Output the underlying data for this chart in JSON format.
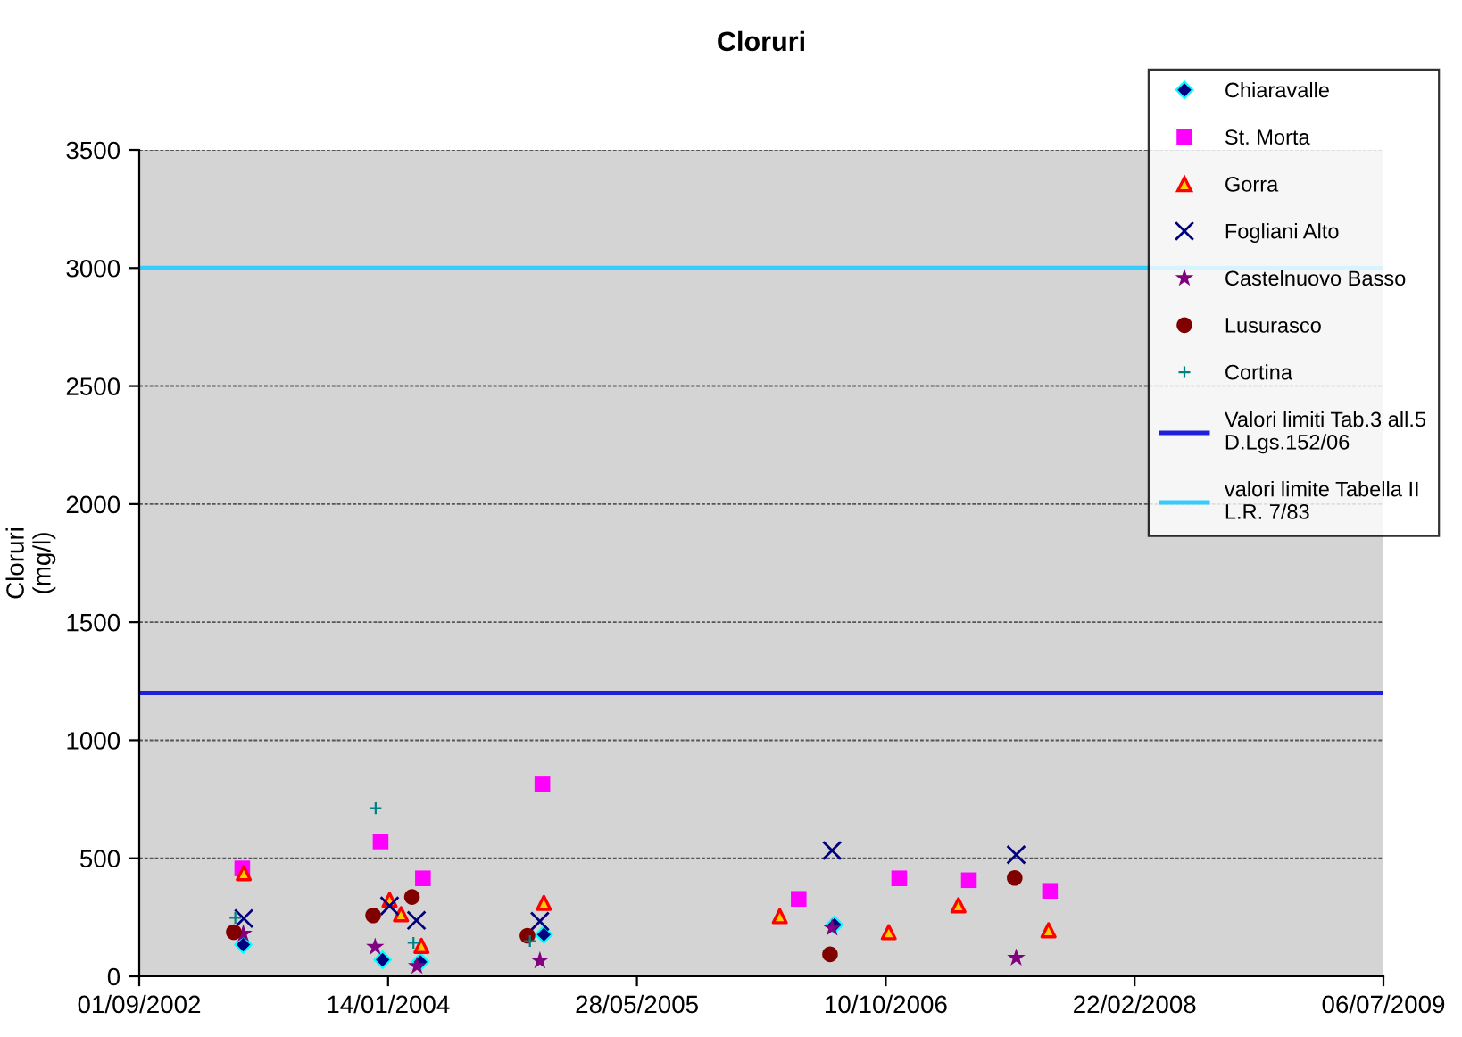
{
  "chart_data": {
    "type": "scatter",
    "title": "Cloruri",
    "ylabel": "Cloruri\n(mg/l)",
    "xlim": [
      "2002-09-01",
      "2009-07-06"
    ],
    "xticks": [
      {
        "value": "2002-09-01",
        "label": "01/09/2002"
      },
      {
        "value": "2004-01-14",
        "label": "14/01/2004"
      },
      {
        "value": "2005-05-28",
        "label": "28/05/2005"
      },
      {
        "value": "2006-10-10",
        "label": "10/10/2006"
      },
      {
        "value": "2008-02-22",
        "label": "22/02/2008"
      },
      {
        "value": "2009-07-06",
        "label": "06/07/2009"
      }
    ],
    "ylim": [
      0,
      3500
    ],
    "yticks": [
      0,
      500,
      1000,
      1500,
      2000,
      2500,
      3000,
      3500
    ],
    "grid": "y",
    "legend": "top right",
    "series": [
      {
        "name": "Chiaravalle",
        "color": "#000080",
        "marker": "diamond",
        "x": [
          "2003-03-29",
          "2004-01-03",
          "2004-03-19",
          "2004-11-22",
          "2006-06-29"
        ],
        "values": [
          134,
          70,
          61,
          177,
          218
        ]
      },
      {
        "name": "St. Morta",
        "color": "#ff00ff",
        "marker": "square",
        "x": [
          "2003-03-27",
          "2003-12-30",
          "2004-03-24",
          "2004-11-19",
          "2006-04-18",
          "2006-11-06",
          "2007-03-26",
          "2007-09-05"
        ],
        "values": [
          457,
          571,
          415,
          813,
          328,
          415,
          407,
          362
        ]
      },
      {
        "name": "Gorra",
        "color": "#ff0000",
        "marker": "triangle",
        "x": [
          "2003-03-30",
          "2004-01-17",
          "2004-02-09",
          "2004-03-21",
          "2004-11-22",
          "2006-03-11",
          "2006-10-16",
          "2007-03-05",
          "2007-09-02"
        ],
        "values": [
          437,
          324,
          263,
          129,
          311,
          255,
          187,
          301,
          195
        ]
      },
      {
        "name": "Fogliani Alto",
        "color": "#000080",
        "marker": "cross",
        "x": [
          "2003-03-30",
          "2004-01-17",
          "2004-03-11",
          "2004-11-14",
          "2006-06-24",
          "2007-06-29"
        ],
        "values": [
          245,
          298,
          237,
          233,
          533,
          515
        ]
      },
      {
        "name": "Castelnuovo Basso",
        "color": "#800080",
        "marker": "star",
        "x": [
          "2003-03-29",
          "2003-12-19",
          "2004-03-12",
          "2004-11-14",
          "2006-06-24",
          "2007-06-29"
        ],
        "values": [
          180,
          124,
          43,
          66,
          205,
          78
        ]
      },
      {
        "name": "Lusurasco",
        "color": "#800000",
        "marker": "circle",
        "x": [
          "2003-03-10",
          "2003-12-15",
          "2004-03-02",
          "2004-10-20",
          "2006-06-20",
          "2007-06-26"
        ],
        "values": [
          187,
          258,
          336,
          172,
          93,
          417
        ]
      },
      {
        "name": "Cortina",
        "color": "#008080",
        "marker": "plus",
        "x": [
          "2003-03-13",
          "2003-12-20",
          "2004-03-05",
          "2004-10-25"
        ],
        "values": [
          248,
          712,
          142,
          149
        ]
      }
    ],
    "ref_lines": [
      {
        "axis": "y",
        "value": 1200,
        "label": "Valori limiti Tab.3 all.5 D.Lgs.152/06",
        "color": "#1f1fdc"
      },
      {
        "axis": "y",
        "value": 3000,
        "label": "valori limite Tabella II L.R. 7/83",
        "color": "#33ccff"
      }
    ]
  }
}
